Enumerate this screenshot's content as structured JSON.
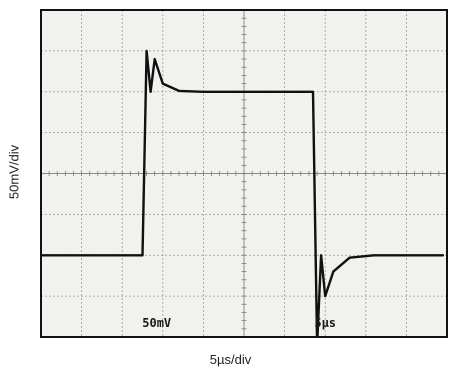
{
  "chart_data": {
    "type": "line",
    "title": "",
    "xlabel": "5µs/div",
    "ylabel": "50mV/div",
    "grid": true,
    "divisions": {
      "x": 10,
      "y": 8
    },
    "xlim": [
      0,
      50
    ],
    "ylim": [
      -200,
      200
    ],
    "annotations": [
      {
        "text": "50mV",
        "location": "bottom-center-left"
      },
      {
        "text": "5µs",
        "location": "bottom-center-right"
      }
    ],
    "series": [
      {
        "x": [
          0,
          3,
          6,
          9,
          12,
          12.5,
          13,
          13.5,
          14,
          15,
          17,
          20,
          24,
          28,
          32,
          33.5,
          34,
          34.5,
          35,
          36,
          38,
          41,
          45,
          49.5
        ],
        "y": [
          -100,
          -100,
          -100,
          -100,
          -100,
          -100,
          150,
          100,
          140,
          110,
          101,
          100,
          100,
          100,
          100,
          100,
          -210,
          -100,
          -150,
          -120,
          -103,
          -100,
          -100,
          -100
        ]
      }
    ]
  }
}
